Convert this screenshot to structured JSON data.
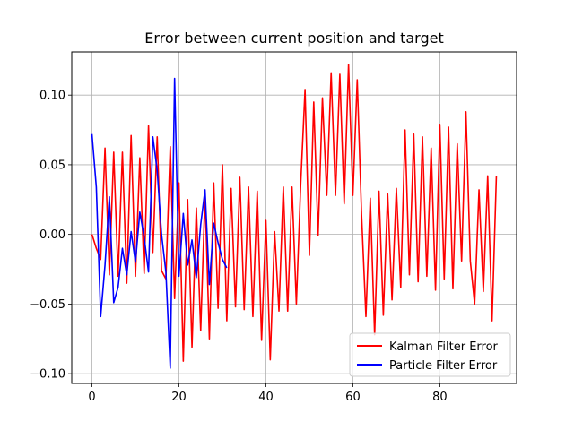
{
  "chart_data": {
    "type": "line",
    "title": "Error between current position and target",
    "xlabel": "",
    "ylabel": "",
    "xlim": [
      -4.65,
      97.65
    ],
    "ylim": [
      -0.107,
      0.131
    ],
    "xticks": [
      0,
      20,
      40,
      60,
      80
    ],
    "yticks": [
      -0.1,
      -0.05,
      0.0,
      0.05,
      0.1
    ],
    "xtick_labels": [
      "0",
      "20",
      "40",
      "60",
      "80"
    ],
    "ytick_labels": [
      "−0.10",
      "−0.05",
      "0.00",
      "0.05",
      "0.10"
    ],
    "grid": true,
    "legend_position": "lower-right",
    "series": [
      {
        "name": "Kalman Filter Error",
        "color": "#ff0000",
        "x": [
          0,
          1,
          2,
          3,
          4,
          5,
          6,
          7,
          8,
          9,
          10,
          11,
          12,
          13,
          14,
          15,
          16,
          17,
          18,
          19,
          20,
          21,
          22,
          23,
          24,
          25,
          26,
          27,
          28,
          29,
          30,
          31,
          32,
          33,
          34,
          35,
          36,
          37,
          38,
          39,
          40,
          41,
          42,
          43,
          44,
          45,
          46,
          47,
          48,
          49,
          50,
          51,
          52,
          53,
          54,
          55,
          56,
          57,
          58,
          59,
          60,
          61,
          62,
          63,
          64,
          65,
          66,
          67,
          68,
          69,
          70,
          71,
          72,
          73,
          74,
          75,
          76,
          77,
          78,
          79,
          80,
          81,
          82,
          83,
          84,
          85,
          86,
          87,
          88,
          89,
          90,
          91,
          92,
          93
        ],
        "y": [
          0.0,
          -0.01,
          -0.018,
          0.062,
          -0.029,
          0.059,
          -0.03,
          0.059,
          -0.035,
          0.071,
          -0.03,
          0.055,
          -0.028,
          0.078,
          -0.013,
          0.07,
          -0.026,
          -0.032,
          0.063,
          -0.046,
          0.037,
          -0.091,
          0.025,
          -0.081,
          0.019,
          -0.069,
          0.029,
          -0.075,
          0.037,
          -0.053,
          0.05,
          -0.062,
          0.033,
          -0.052,
          0.041,
          -0.054,
          0.034,
          -0.059,
          0.031,
          -0.076,
          0.01,
          -0.09,
          0.002,
          -0.055,
          0.034,
          -0.055,
          0.034,
          -0.05,
          0.036,
          0.104,
          -0.015,
          0.095,
          -0.001,
          0.098,
          0.028,
          0.116,
          0.028,
          0.115,
          0.022,
          0.122,
          0.028,
          0.111,
          0.014,
          -0.059,
          0.026,
          -0.072,
          0.031,
          -0.058,
          0.029,
          -0.047,
          0.033,
          -0.038,
          0.075,
          -0.029,
          0.072,
          -0.034,
          0.07,
          -0.03,
          0.062,
          -0.04,
          0.079,
          -0.032,
          0.077,
          -0.039,
          0.065,
          -0.019,
          0.088,
          -0.019,
          -0.05,
          0.032,
          -0.041,
          0.042,
          -0.062,
          0.042
        ]
      },
      {
        "name": "Particle Filter Error",
        "color": "#0000ff",
        "x": [
          0,
          1,
          2,
          3,
          4,
          5,
          6,
          7,
          8,
          9,
          10,
          11,
          12,
          13,
          14,
          15,
          16,
          17,
          18,
          19,
          20,
          21,
          22,
          23,
          24,
          25,
          26,
          27,
          28,
          29,
          30,
          31
        ],
        "y": [
          0.072,
          0.034,
          -0.059,
          -0.022,
          0.027,
          -0.049,
          -0.038,
          -0.01,
          -0.029,
          0.002,
          -0.02,
          0.016,
          -0.002,
          -0.027,
          0.07,
          0.046,
          0.0,
          -0.027,
          -0.096,
          0.112,
          -0.03,
          0.015,
          -0.022,
          -0.004,
          -0.031,
          0.007,
          0.032,
          -0.036,
          0.008,
          -0.006,
          -0.018,
          -0.024
        ]
      }
    ]
  }
}
